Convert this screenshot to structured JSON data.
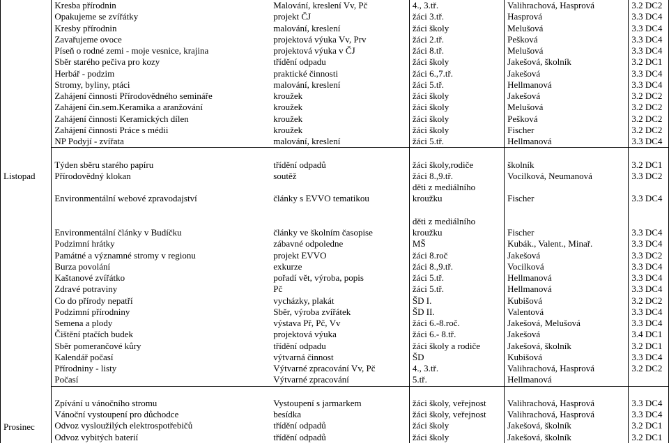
{
  "months": {
    "listopad": "Listopad",
    "prosinec": "Prosinec"
  },
  "block1": [
    [
      "Kresba přírodnin",
      "Malování, kreslení Vv, Pč",
      "4., 3.tř.",
      "Valihrachová, Hasprová",
      "3.2 DC2"
    ],
    [
      "Opakujeme se zvířátky",
      "projekt ČJ",
      "žáci 3.tř.",
      "Hasprová",
      "3.3 DC4"
    ],
    [
      "Kresby přírodnin",
      "malování, kreslení",
      "žáci školy",
      "Melušová",
      "3.3 DC4"
    ],
    [
      "Zavařujeme ovoce",
      "projektová výuka Vv, Prv",
      "žáci 2.tř.",
      "Pešková",
      "3.3 DC4"
    ],
    [
      "Píseň o rodné zemi - moje vesnice, krajina",
      "projektová výuka v ČJ",
      "žáci 8.tř.",
      "Melušová",
      "3.3 DC4"
    ],
    [
      "Sběr starého pečiva pro kozy",
      "třídění odpadu",
      "žáci školy",
      "Jakešová, školník",
      "3.2 DC1"
    ],
    [
      "Herbář - podzim",
      "praktické činnosti",
      "žáci 6.,7.tř.",
      "Jakešová",
      "3.3 DC4"
    ],
    [
      "Stromy, byliny, ptáci",
      "malování, kreslení",
      "žáci 5.tř.",
      "Hellmanová",
      "3.3 DC4"
    ],
    [
      "Zahájení činnosti Přírodovědného semináře",
      "kroužek",
      "žáci školy",
      "Jakešová",
      "3.2 DC2"
    ],
    [
      "Zahájení čin.sem.Keramika a aranžování",
      "kroužek",
      "žáci školy",
      "Melušová",
      "3.2 DC2"
    ],
    [
      "Zahájení činnosti Keramických dílen",
      "kroužek",
      "žáci školy",
      "Pešková",
      "3.2 DC2"
    ],
    [
      "Zahájení činnosti Práce s médii",
      "kroužek",
      "žáci školy",
      "Fischer",
      "3.2 DC2"
    ],
    [
      "NP Podyjí - zvířata",
      "malování, kreslení",
      "žáci 5.tř.",
      "Hellmanová",
      "3.3 DC4"
    ]
  ],
  "block2a": [
    [
      "Týden sběru starého papíru",
      "třídění odpadů",
      "žáci školy,rodiče",
      "školník",
      "3.2 DC1"
    ],
    [
      "Přírodovědný klokan",
      "soutěž",
      "žáci 8.,9.tř.",
      "Vocilková, Neumanová",
      "3.3 DC2"
    ],
    [
      "",
      "",
      "děti z mediálního",
      "",
      ""
    ],
    [
      "Environmentální webové zpravodajství",
      "články s EVVO tematikou",
      "kroužku",
      "Fischer",
      "3.3 DC4"
    ]
  ],
  "block2b": [
    [
      "",
      "",
      "děti z mediálního",
      "",
      ""
    ],
    [
      "Environmentální články v Budíčku",
      "články ve školním časopise",
      "kroužku",
      "Fischer",
      "3.3 DC4"
    ],
    [
      "Podzimní hrátky",
      "zábavné odpoledne",
      "MŠ",
      "Kubák., Valent., Minař.",
      "3.3 DC4"
    ],
    [
      "Památné a významné stromy v regionu",
      "projekt EVVO",
      "žáci 8.roč",
      "Jakešová",
      "3.3 DC2"
    ],
    [
      "Burza povolání",
      "exkurze",
      "žáci 8.,9.tř.",
      "Vocilková",
      "3.3 DC4"
    ],
    [
      "Kaštanové zvířátko",
      "pořadí vět, výroba, popis",
      "žáci 5.tř.",
      "Hellmanová",
      "3.3 DC4"
    ],
    [
      "Zdravé potraviny",
      "Pč",
      "žáci 5.tř.",
      "Hellmanová",
      "3.3 DC4"
    ],
    [
      "Co do přírody nepatří",
      "vycházky, plakát",
      "ŠD I.",
      "Kubišová",
      "3.2 DC2"
    ],
    [
      "Podzimní přírodniny",
      "Sběr, výroba zvířátek",
      "ŠD II.",
      "Valentová",
      "3.3 DC4"
    ],
    [
      "Semena a plody",
      "výstava Př, Pč, Vv",
      "žáci 6.-8.roč.",
      "Jakešová, Melušová",
      "3.3 DC4"
    ],
    [
      "Čištění ptačích budek",
      "projektová výuka",
      "žáci 6.- 8.tř.",
      "Jakešová",
      "3.4 DC1"
    ],
    [
      "Sběr pomerančové kůry",
      "třídění odpadu",
      "žáci školy a rodiče",
      "Jakešová, školník",
      "3.2 DC1"
    ],
    [
      "Kalendář počasí",
      "výtvarná činnost",
      "ŠD",
      "Kubišová",
      "3.3 DC4"
    ],
    [
      "Přírodniny - listy",
      "Výtvarné zpracování Vv, Pč",
      "4., 3.tř.",
      "Valihrachová, Hasprová",
      "3.2 DC2"
    ],
    [
      "Počasí",
      "Výtvarné zpracování",
      "5.tř.",
      "Hellmanová",
      ""
    ]
  ],
  "block3": [
    [
      "Zpívání u vánočního stromu",
      "Vystoupení s jarmarkem",
      "žáci školy, veřejnost",
      "Valihrachová, Hasprová",
      "3.3 DC4"
    ],
    [
      "Vánoční vystoupení pro důchodce",
      "besídka",
      "žáci školy, veřejnost",
      "Valihrachová, Hasprová",
      "3.3 DC4"
    ],
    [
      "Odvoz vysloužilých elektrospotřebičů",
      "třídění odpadů",
      "žáci školy",
      "Jakešová, školník",
      "3.2 DC1"
    ],
    [
      "Odvoz vybitých baterií",
      "třídění odpadů",
      "žáci školy",
      "Jakešová, školník",
      "3.2 DC1"
    ]
  ]
}
